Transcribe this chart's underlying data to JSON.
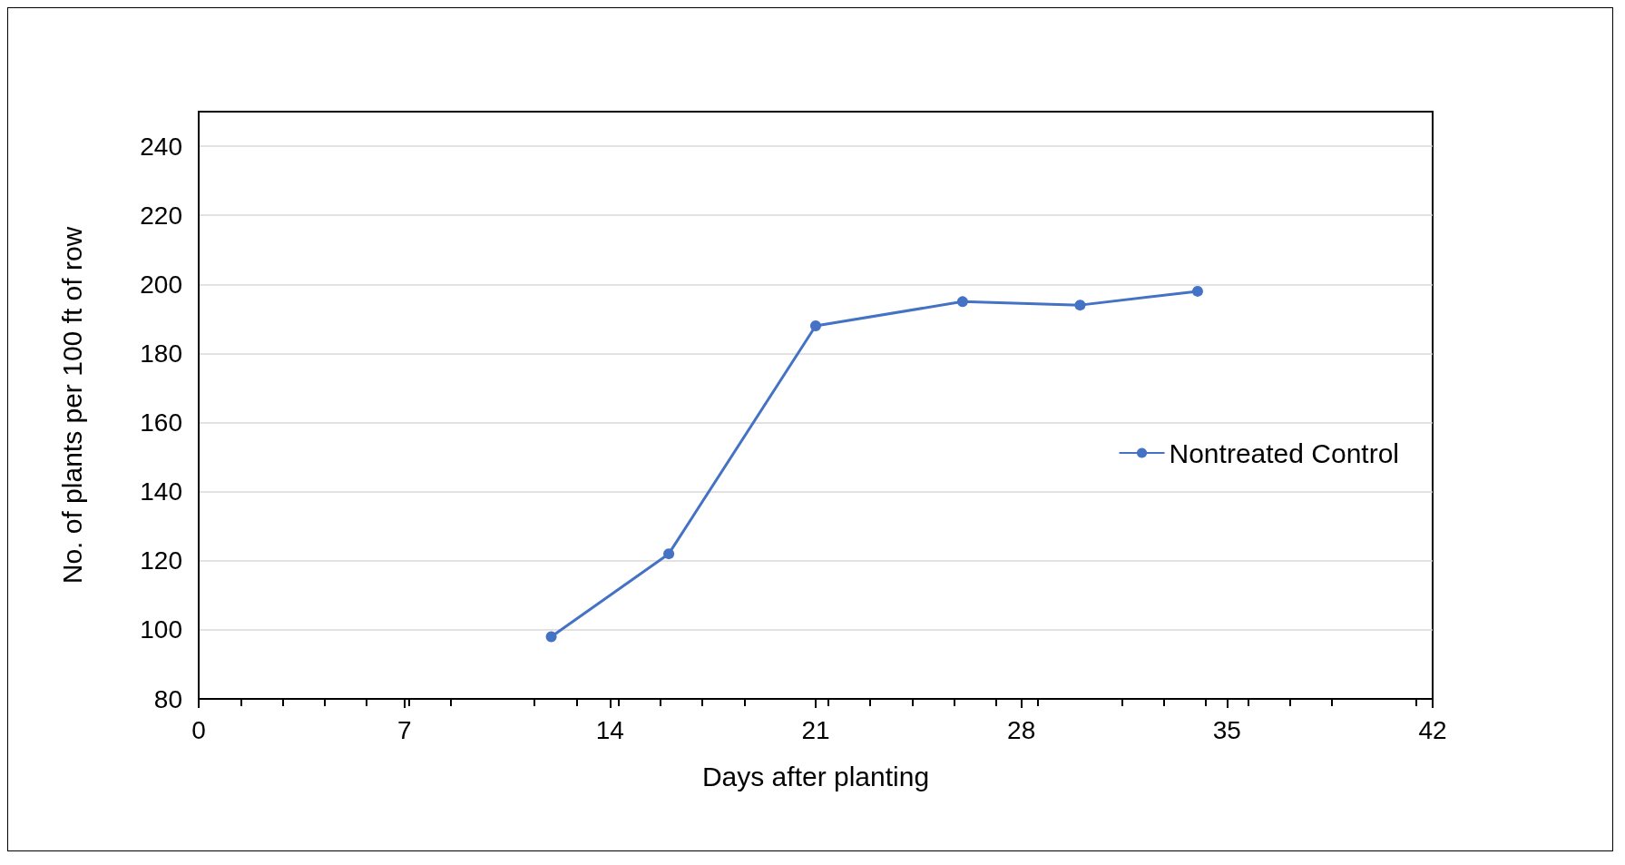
{
  "chart_data": {
    "type": "line",
    "xlabel": "Days after planting",
    "ylabel": "No. of plants per 100 ft of row",
    "x": [
      12,
      16,
      21,
      26,
      30,
      34
    ],
    "series": [
      {
        "name": "Nontreated Control",
        "color": "#4472c4",
        "values": [
          98,
          122,
          188,
          195,
          194,
          198
        ]
      }
    ],
    "xlim": [
      0,
      42
    ],
    "xticks": [
      0,
      7,
      14,
      21,
      28,
      35,
      42
    ],
    "ylim": [
      80,
      250
    ],
    "yticks": [
      80,
      100,
      120,
      140,
      160,
      180,
      200,
      220,
      240
    ],
    "grid": "y",
    "legend": "right",
    "marker": "circle",
    "line_style": "solid"
  }
}
